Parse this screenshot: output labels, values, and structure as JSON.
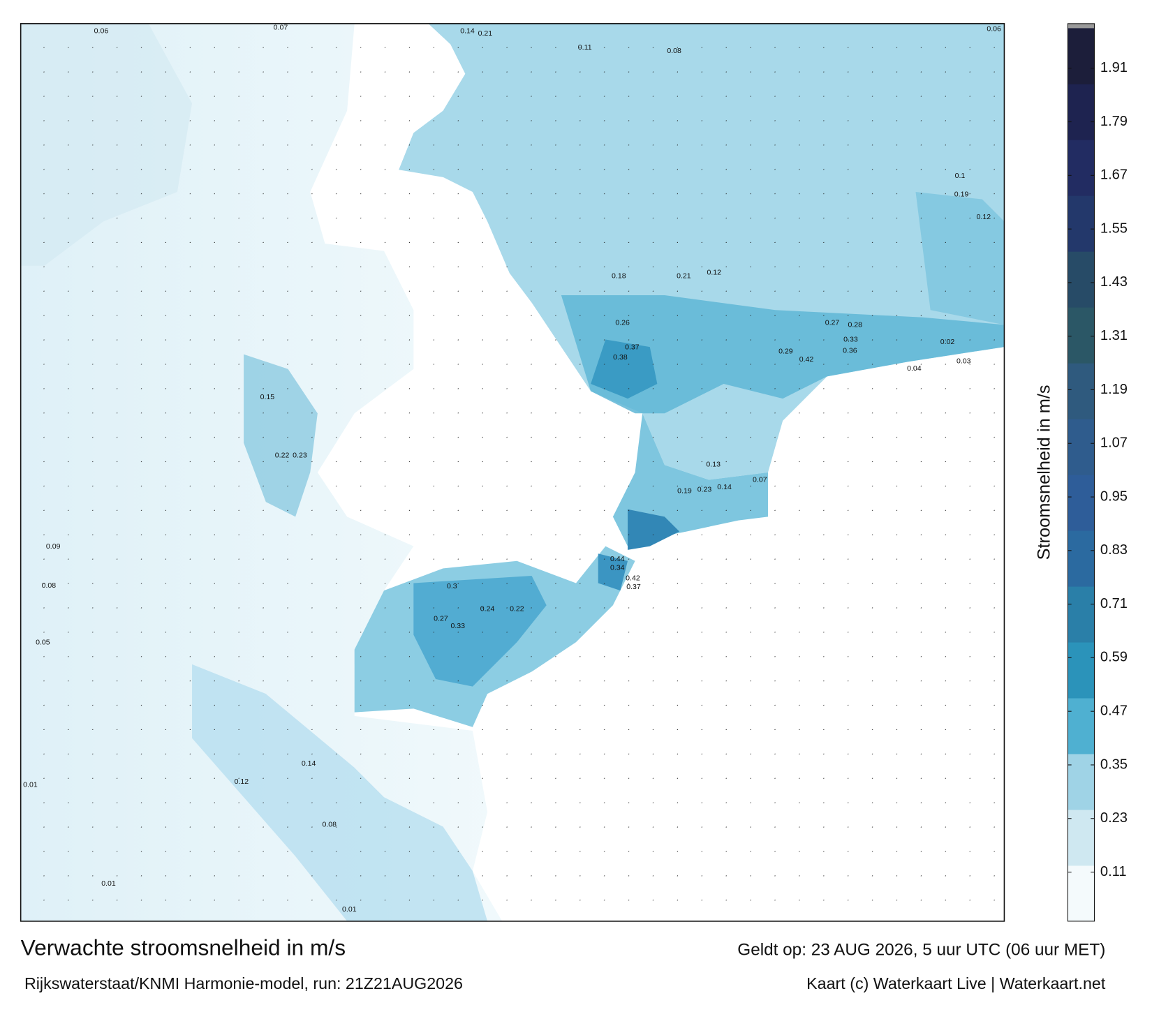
{
  "title": "Verwachte stroomsnelheid in m/s",
  "valid_time": "Geldt op: 23 AUG 2026, 5 uur UTC (06 uur MET)",
  "model_run": "Rijkswaterstaat/KNMI Harmonie-model, run: 21Z21AUG2026",
  "credit": "Kaart (c) Waterkaart Live | Waterkaart.net",
  "colorbar": {
    "label": "Stroomsnelheid in m/s",
    "lim": [
      0,
      2
    ],
    "ticks": [
      0.11,
      0.23,
      0.35,
      0.47,
      0.59,
      0.71,
      0.83,
      0.95,
      1.07,
      1.19,
      1.31,
      1.43,
      1.55,
      1.67,
      1.79,
      1.91
    ],
    "colors": [
      "#f4fafc",
      "#cfe8f1",
      "#9fd3e6",
      "#4fb0d1",
      "#2b93ba",
      "#2a7fa8",
      "#2b6aa0",
      "#2e5d99",
      "#2f5c8d",
      "#2f5a7e",
      "#2b5766",
      "#274b67",
      "#23386b",
      "#222c62",
      "#1e2350",
      "#1c1e3a"
    ]
  },
  "map_labels": [
    0.06,
    0.07,
    0.14,
    0.21,
    0.11,
    0.08,
    0.06,
    0.18,
    0.21,
    0.12,
    0.27,
    0.28,
    0.33,
    0.42,
    0.29,
    0.36,
    0.37,
    0.38,
    0.26,
    0.44,
    0.34,
    0.42,
    0.37,
    0.3,
    0.33,
    0.27,
    0.24,
    0.22,
    0.15,
    0.22,
    0.23,
    0.14,
    0.12,
    0.08,
    0.01,
    0.01,
    0.01,
    0.05,
    0.09,
    0.08,
    0.13,
    0.19,
    0.23,
    0.14,
    0.07,
    0.1,
    0.19,
    0.12,
    0.02,
    0.03,
    0.04
  ]
}
